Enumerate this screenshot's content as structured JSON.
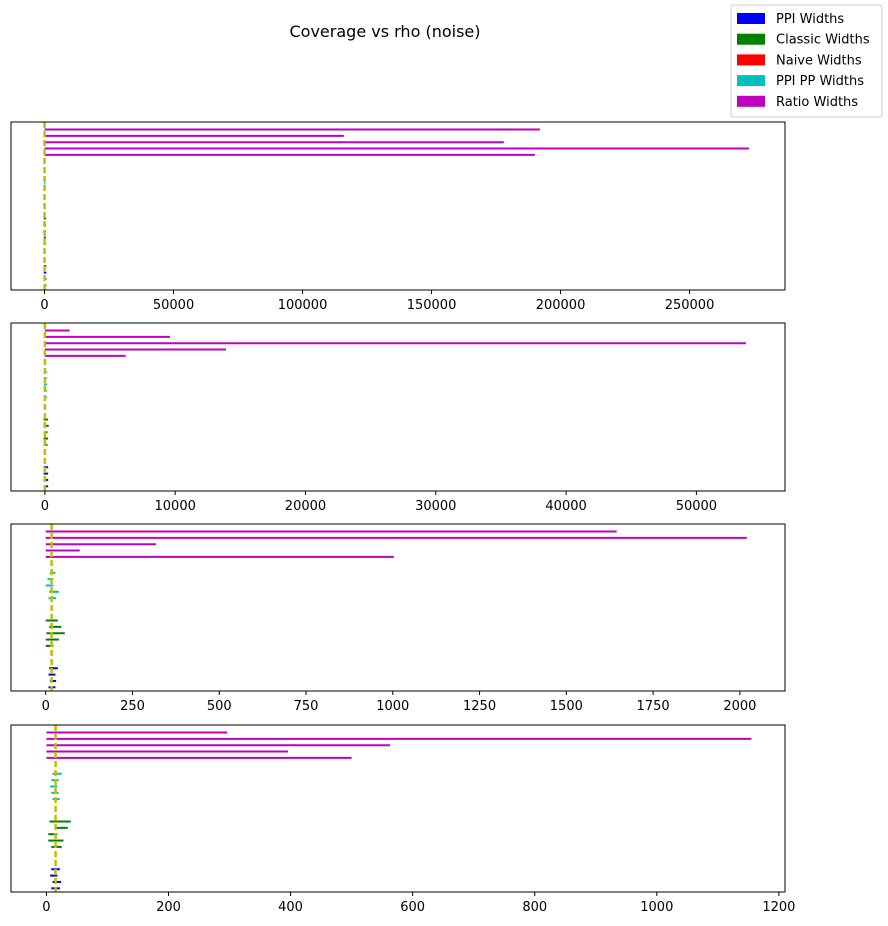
{
  "figure": {
    "title": "Coverage vs rho (noise)"
  },
  "legend": {
    "placement": "upper-right",
    "items": [
      {
        "label": "PPI Widths",
        "color": "#0000ff"
      },
      {
        "label": "Classic Widths",
        "color": "#008000"
      },
      {
        "label": "Naive Widths",
        "color": "#ff0000"
      },
      {
        "label": "PPI PP Widths",
        "color": "#00bfbf"
      },
      {
        "label": "Ratio Widths",
        "color": "#bf00bf"
      }
    ]
  },
  "chart_data": [
    {
      "type": "bar",
      "orientation": "horizontal",
      "xlim": [
        -13000,
        287000
      ],
      "xticks": [
        "0",
        "50000",
        "100000",
        "150000",
        "200000",
        "250000"
      ],
      "xtick_values": [
        0,
        50000,
        100000,
        150000,
        200000,
        250000
      ],
      "reference_line": {
        "x": 0,
        "color": "#bfbf00",
        "style": "dashed"
      },
      "series": [
        {
          "name": "Ratio Widths",
          "color": "#bf00bf",
          "intervals": [
            [
              0,
              192000
            ],
            [
              0,
              116000
            ],
            [
              0,
              178000
            ],
            [
              0,
              273000
            ],
            [
              0,
              190000
            ]
          ]
        },
        {
          "name": "PPI PP Widths",
          "color": "#00bfbf",
          "intervals": [
            [
              -200,
              400
            ],
            [
              -200,
              400
            ],
            [
              -200,
              400
            ],
            [
              -200,
              400
            ],
            [
              -200,
              400
            ]
          ]
        },
        {
          "name": "Classic Widths",
          "color": "#008000",
          "intervals": [
            [
              -300,
              600
            ],
            [
              -300,
              600
            ],
            [
              -300,
              600
            ],
            [
              -300,
              600
            ],
            [
              -300,
              600
            ]
          ]
        },
        {
          "name": "PPI Widths",
          "color": "#0000ff",
          "intervals": [
            [
              -300,
              700
            ],
            [
              -300,
              700
            ],
            [
              -300,
              700
            ],
            [
              -300,
              700
            ],
            [
              -300,
              700
            ]
          ]
        }
      ]
    },
    {
      "type": "bar",
      "orientation": "horizontal",
      "xlim": [
        -2600,
        56800
      ],
      "xticks": [
        "0",
        "10000",
        "20000",
        "30000",
        "40000",
        "50000"
      ],
      "xtick_values": [
        0,
        10000,
        20000,
        30000,
        40000,
        50000
      ],
      "reference_line": {
        "x": 0,
        "color": "#bfbf00",
        "style": "dashed"
      },
      "series": [
        {
          "name": "Ratio Widths",
          "color": "#bf00bf",
          "intervals": [
            [
              0,
              1900
            ],
            [
              0,
              9600
            ],
            [
              0,
              53800
            ],
            [
              0,
              13900
            ],
            [
              0,
              6200
            ]
          ]
        },
        {
          "name": "PPI PP Widths",
          "color": "#00bfbf",
          "intervals": [
            [
              -80,
              150
            ],
            [
              -80,
              150
            ],
            [
              -80,
              150
            ],
            [
              -80,
              150
            ],
            [
              -80,
              150
            ]
          ]
        },
        {
          "name": "Classic Widths",
          "color": "#008000",
          "intervals": [
            [
              -100,
              250
            ],
            [
              -100,
              300
            ],
            [
              -80,
              200
            ],
            [
              -100,
              250
            ],
            [
              -100,
              200
            ]
          ]
        },
        {
          "name": "PPI Widths",
          "color": "#0000ff",
          "intervals": [
            [
              -100,
              250
            ],
            [
              -100,
              250
            ],
            [
              -100,
              250
            ],
            [
              -100,
              250
            ],
            [
              -100,
              250
            ]
          ]
        }
      ]
    },
    {
      "type": "bar",
      "orientation": "horizontal",
      "xlim": [
        -100,
        2130
      ],
      "xticks": [
        "0",
        "250",
        "500",
        "750",
        "1000",
        "1250",
        "1500",
        "1750",
        "2000"
      ],
      "xtick_values": [
        0,
        250,
        500,
        750,
        1000,
        1250,
        1500,
        1750,
        2000
      ],
      "reference_line": {
        "x": 17,
        "color": "#bfbf00",
        "style": "dashed"
      },
      "series": [
        {
          "name": "Ratio Widths",
          "color": "#bf00bf",
          "intervals": [
            [
              0,
              1645
            ],
            [
              0,
              2020
            ],
            [
              0,
              318
            ],
            [
              0,
              98
            ],
            [
              0,
              1003
            ]
          ]
        },
        {
          "name": "PPI PP Widths",
          "color": "#00bfbf",
          "intervals": [
            [
              12,
              28
            ],
            [
              5,
              22
            ],
            [
              0,
              22
            ],
            [
              10,
              38
            ],
            [
              8,
              30
            ]
          ]
        },
        {
          "name": "Classic Widths",
          "color": "#008000",
          "intervals": [
            [
              0,
              35
            ],
            [
              10,
              45
            ],
            [
              2,
              55
            ],
            [
              0,
              38
            ],
            [
              0,
              22
            ]
          ]
        },
        {
          "name": "PPI Widths",
          "color": "#0000ff",
          "intervals": [
            [
              10,
              35
            ],
            [
              8,
              28
            ],
            [
              12,
              30
            ],
            [
              8,
              28
            ],
            [
              10,
              30
            ]
          ]
        }
      ]
    },
    {
      "type": "bar",
      "orientation": "horizontal",
      "xlim": [
        -58,
        1210
      ],
      "xticks": [
        "0",
        "200",
        "400",
        "600",
        "800",
        "1000",
        "1200"
      ],
      "xtick_values": [
        0,
        200,
        400,
        600,
        800,
        1000,
        1200
      ],
      "reference_line": {
        "x": 15,
        "color": "#bfbf00",
        "style": "dashed"
      },
      "series": [
        {
          "name": "Ratio Widths",
          "color": "#bf00bf",
          "intervals": [
            [
              0,
              296
            ],
            [
              0,
              1155
            ],
            [
              0,
              563
            ],
            [
              0,
              396
            ],
            [
              0,
              500
            ]
          ]
        },
        {
          "name": "PPI PP Widths",
          "color": "#00bfbf",
          "intervals": [
            [
              10,
              25
            ],
            [
              8,
              20
            ],
            [
              6,
              18
            ],
            [
              8,
              20
            ],
            [
              10,
              22
            ]
          ]
        },
        {
          "name": "Classic Widths",
          "color": "#008000",
          "intervals": [
            [
              5,
              40
            ],
            [
              15,
              35
            ],
            [
              3,
              18
            ],
            [
              3,
              28
            ],
            [
              8,
              25
            ]
          ]
        },
        {
          "name": "PPI Widths",
          "color": "#0000ff",
          "intervals": [
            [
              8,
              22
            ],
            [
              6,
              18
            ],
            [
              10,
              24
            ],
            [
              8,
              22
            ],
            [
              10,
              22
            ]
          ]
        }
      ]
    }
  ]
}
